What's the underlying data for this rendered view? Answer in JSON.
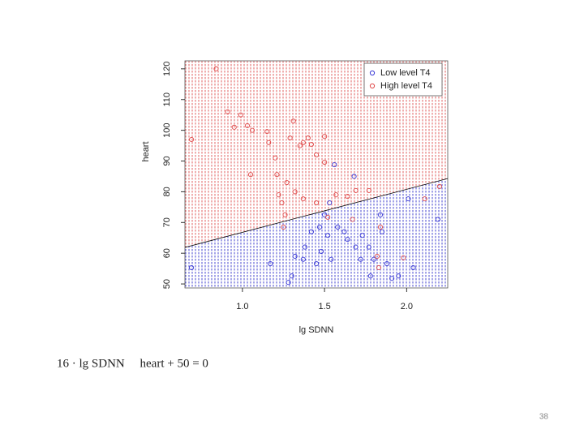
{
  "chart_data": {
    "type": "scatter",
    "xlabel": "lg SDNN",
    "ylabel": "heart",
    "xlim": [
      0.65,
      2.25
    ],
    "ylim": [
      48.7,
      122.6
    ],
    "xticks": [
      {
        "value": 1,
        "label": "1.0"
      },
      {
        "value": 1.5,
        "label": "1.5"
      },
      {
        "value": 2,
        "label": "2.0"
      }
    ],
    "yticks": [
      50,
      60,
      70,
      80,
      90,
      100,
      110,
      120
    ],
    "legend": "top-right",
    "series": [
      {
        "name": "Low level T4",
        "color": "#3a3ad6",
        "x": [
          0.69,
          1.17,
          1.28,
          1.32,
          1.37,
          1.38,
          1.42,
          1.45,
          1.47,
          1.48,
          1.5,
          1.52,
          1.53,
          1.54,
          1.56,
          1.58,
          1.62,
          1.64,
          1.68,
          1.69,
          1.73,
          1.77,
          1.78,
          1.8,
          1.84,
          1.85,
          1.88,
          1.91,
          1.95,
          2.01,
          2.04,
          2.19,
          1.3,
          1.72
        ],
        "values": [
          55.3,
          56.6,
          50.5,
          59,
          58,
          62,
          67,
          56.6,
          68.5,
          60.6,
          72.5,
          65.8,
          76.4,
          58,
          88.8,
          68.5,
          67,
          64.5,
          85,
          62,
          65.8,
          62,
          52.6,
          58,
          72.5,
          67,
          56.6,
          51.8,
          52.6,
          77.7,
          55.3,
          71,
          52.6,
          58
        ]
      },
      {
        "name": "High level T4",
        "color": "#e04a4a",
        "x": [
          0.69,
          0.84,
          0.91,
          0.95,
          0.99,
          1.03,
          1.05,
          1.06,
          1.15,
          1.16,
          1.2,
          1.21,
          1.22,
          1.24,
          1.26,
          1.27,
          1.29,
          1.31,
          1.32,
          1.35,
          1.37,
          1.4,
          1.42,
          1.45,
          1.5,
          1.5,
          1.37,
          1.45,
          1.52,
          1.57,
          1.64,
          1.69,
          1.77,
          1.67,
          1.84,
          1.82,
          1.83,
          1.98,
          2.11,
          2.2,
          1.25
        ],
        "values": [
          97,
          120,
          106,
          101,
          105,
          101.5,
          85.6,
          100,
          99.6,
          96,
          91,
          85.6,
          79,
          76.4,
          72.5,
          83,
          97.5,
          103,
          80,
          95,
          96,
          97.5,
          95.4,
          92,
          98,
          89.6,
          77.7,
          76.4,
          71.7,
          79,
          78.5,
          80.4,
          80.4,
          71,
          68.5,
          59,
          55.3,
          58.5,
          77.7,
          81.7,
          68.5
        ]
      }
    ],
    "boundary": {
      "x": [
        0.65,
        2.25
      ],
      "values": [
        61.9,
        84.3
      ],
      "color": "#000000"
    }
  },
  "equation": "16 · lg SDNN     heart + 50 = 0",
  "page_number": "38"
}
